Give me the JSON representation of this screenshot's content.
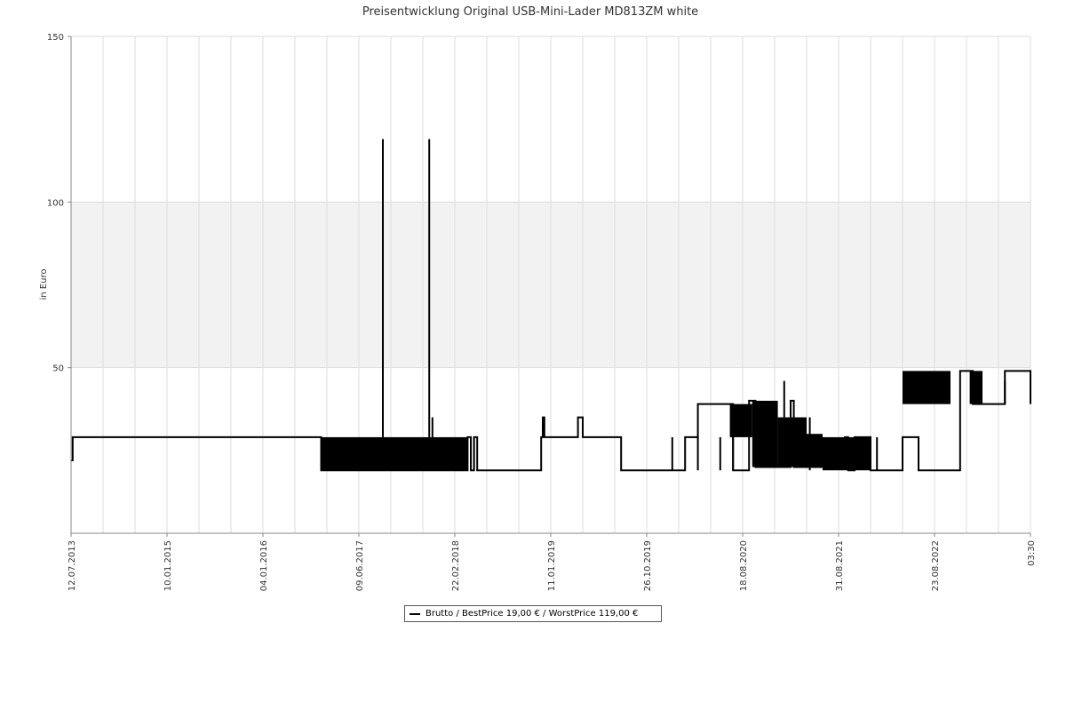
{
  "chart_data": {
    "type": "line",
    "title": "Preisentwicklung Original USB-Mini-Lader MD813ZM white",
    "ylabel": "in Euro",
    "xlabel": "",
    "ylim": [
      0,
      150
    ],
    "y_ticks": [
      50,
      100,
      150
    ],
    "highlight_band": [
      50,
      100
    ],
    "x_tick_labels": [
      "12.07.2013",
      "10.01.2015",
      "04.01.2016",
      "09.06.2017",
      "22.02.2018",
      "11.01.2019",
      "26.10.2019",
      "18.08.2020",
      "31.08.2021",
      "23.08.2022",
      "03:30"
    ],
    "x_domain": [
      0,
      30
    ],
    "grid": true,
    "legend_position": "bottom",
    "colors": {
      "line": "#000000",
      "band": "#f2f2f2",
      "grid": "#dddddd",
      "axis": "#888888"
    },
    "series": [
      {
        "name": "Brutto / BestPrice  19,00 € / WorstPrice  119,00 €",
        "x": [
          0,
          0.05,
          7.8,
          7.82,
          12.4,
          12.5,
          12.6,
          12.7,
          14.7,
          14.75,
          14.8,
          15.8,
          15.85,
          16,
          17,
          17.2,
          19.2,
          19.6,
          20.6,
          20.7,
          21.2,
          21.4,
          22.5,
          22.6,
          24.2,
          24.3,
          24.5,
          25,
          26,
          26.5,
          27.8,
          28.2,
          28.4,
          29.2,
          30
        ],
        "y": [
          22,
          29,
          29,
          19,
          29,
          19,
          29,
          19,
          29,
          35,
          29,
          29,
          35,
          29,
          29,
          19,
          29,
          39,
          39,
          19,
          40,
          20,
          40,
          20,
          29,
          19,
          29,
          19,
          29,
          19,
          49,
          39,
          39,
          49,
          39
        ]
      }
    ],
    "features": [
      {
        "kind": "band",
        "x_start": 7.8,
        "x_end": 12.4,
        "low": 19,
        "high": 29
      },
      {
        "kind": "band",
        "x_start": 20.6,
        "x_end": 21.3,
        "low": 29,
        "high": 39
      },
      {
        "kind": "band",
        "x_start": 21.3,
        "x_end": 22.1,
        "low": 20,
        "high": 40
      },
      {
        "kind": "band",
        "x_start": 22.1,
        "x_end": 23,
        "low": 20,
        "high": 35
      },
      {
        "kind": "band",
        "x_start": 23,
        "x_end": 23.5,
        "low": 20,
        "high": 30
      },
      {
        "kind": "band",
        "x_start": 23.5,
        "x_end": 24.5,
        "low": 19,
        "high": 29
      },
      {
        "kind": "band",
        "x_start": 24.5,
        "x_end": 25,
        "low": 19,
        "high": 29
      },
      {
        "kind": "band",
        "x_start": 26,
        "x_end": 27.5,
        "low": 39,
        "high": 49
      },
      {
        "kind": "band",
        "x_start": 28.1,
        "x_end": 28.5,
        "low": 39,
        "high": 49
      },
      {
        "kind": "spike",
        "x": 9.75,
        "low": 29,
        "high": 119
      },
      {
        "kind": "spike",
        "x": 11.2,
        "low": 29,
        "high": 119
      },
      {
        "kind": "spike",
        "x": 11.3,
        "low": 29,
        "high": 35
      },
      {
        "kind": "spike",
        "x": 12.6,
        "low": 19,
        "high": 29
      },
      {
        "kind": "spike",
        "x": 18.8,
        "low": 19,
        "high": 29
      },
      {
        "kind": "spike",
        "x": 19.6,
        "low": 19,
        "high": 29
      },
      {
        "kind": "spike",
        "x": 20.3,
        "low": 19,
        "high": 29
      },
      {
        "kind": "spike",
        "x": 20.7,
        "low": 19,
        "high": 29
      },
      {
        "kind": "spike",
        "x": 22.3,
        "low": 20,
        "high": 46
      },
      {
        "kind": "spike",
        "x": 23.1,
        "low": 19,
        "high": 35
      },
      {
        "kind": "spike",
        "x": 25.2,
        "low": 19,
        "high": 29
      },
      {
        "kind": "spike",
        "x": 29.2,
        "low": 39,
        "high": 46
      }
    ]
  }
}
